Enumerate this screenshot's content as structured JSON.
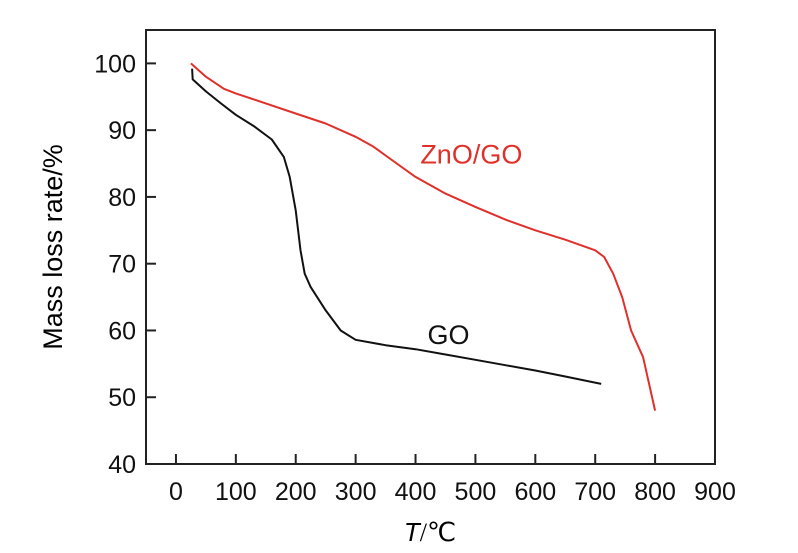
{
  "chart_data": {
    "type": "line",
    "title": "",
    "xlabel": "T/℃",
    "xlabel_italic_part": "T",
    "xlabel_rest": "/℃",
    "ylabel": "Mass loss rate/%",
    "xlim": [
      -50,
      900
    ],
    "ylim": [
      40,
      105
    ],
    "x_ticks": [
      0,
      100,
      200,
      300,
      400,
      500,
      600,
      700,
      800,
      900
    ],
    "y_ticks": [
      40,
      50,
      60,
      70,
      80,
      90,
      100
    ],
    "grid": false,
    "series": [
      {
        "name": "ZnO/GO",
        "color": "#e0302a",
        "label_at": [
          408,
          85
        ],
        "points": [
          [
            25,
            100
          ],
          [
            50,
            98
          ],
          [
            80,
            96.2
          ],
          [
            100,
            95.5
          ],
          [
            150,
            94
          ],
          [
            200,
            92.5
          ],
          [
            250,
            91
          ],
          [
            300,
            89
          ],
          [
            330,
            87.5
          ],
          [
            350,
            86.2
          ],
          [
            400,
            83
          ],
          [
            450,
            80.5
          ],
          [
            500,
            78.5
          ],
          [
            550,
            76.6
          ],
          [
            600,
            75
          ],
          [
            650,
            73.6
          ],
          [
            700,
            72
          ],
          [
            715,
            71
          ],
          [
            730,
            68.5
          ],
          [
            745,
            65
          ],
          [
            760,
            60
          ],
          [
            780,
            56
          ],
          [
            800,
            48
          ]
        ]
      },
      {
        "name": "GO",
        "color": "#111111",
        "label_at": [
          420,
          58
        ],
        "points": [
          [
            27,
            99.2
          ],
          [
            28,
            97.6
          ],
          [
            50,
            95.8
          ],
          [
            75,
            94
          ],
          [
            100,
            92.3
          ],
          [
            130,
            90.6
          ],
          [
            160,
            88.6
          ],
          [
            180,
            86
          ],
          [
            190,
            83
          ],
          [
            200,
            78
          ],
          [
            208,
            72
          ],
          [
            215,
            68.5
          ],
          [
            225,
            66.5
          ],
          [
            250,
            63
          ],
          [
            275,
            60
          ],
          [
            300,
            58.6
          ],
          [
            350,
            57.8
          ],
          [
            400,
            57.2
          ],
          [
            450,
            56.4
          ],
          [
            500,
            55.6
          ],
          [
            550,
            54.8
          ],
          [
            600,
            54
          ],
          [
            650,
            53.1
          ],
          [
            710,
            52
          ]
        ]
      }
    ]
  }
}
